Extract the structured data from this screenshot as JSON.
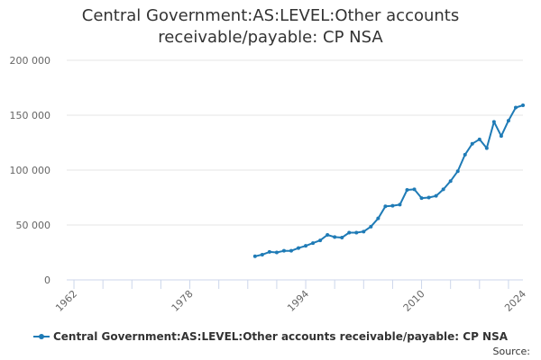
{
  "chart_data": {
    "type": "line",
    "title": "Central Government:AS:LEVEL:Other accounts receivable/payable: CP NSA",
    "xlabel": "",
    "ylabel": "",
    "xlim": [
      1961,
      2024
    ],
    "ylim": [
      0,
      200000
    ],
    "x_ticks": [
      "1962",
      "1978",
      "1994",
      "2010",
      "2024"
    ],
    "y_ticks": [
      "0",
      "50 000",
      "100 000",
      "150 000",
      "200 000"
    ],
    "grid": true,
    "legend": "bottom-center",
    "x": [
      1987,
      1988,
      1989,
      1990,
      1991,
      1992,
      1993,
      1994,
      1995,
      1996,
      1997,
      1998,
      1999,
      2000,
      2001,
      2002,
      2003,
      2004,
      2005,
      2006,
      2007,
      2008,
      2009,
      2010,
      2011,
      2012,
      2013,
      2014,
      2015,
      2016,
      2017,
      2018,
      2019,
      2020,
      2021,
      2022,
      2023,
      2024
    ],
    "series": [
      {
        "name": "Central Government:AS:LEVEL:Other accounts receivable/payable: CP NSA",
        "color": "#1f7bb6",
        "values": [
          21500,
          23000,
          25500,
          25000,
          26500,
          26500,
          29000,
          31000,
          33500,
          36000,
          41000,
          39000,
          38500,
          43000,
          43000,
          44000,
          48500,
          56000,
          67000,
          67500,
          68500,
          82000,
          82500,
          74500,
          75000,
          76500,
          82500,
          90000,
          99000,
          114000,
          124000,
          128000,
          120000,
          144000,
          131000,
          145000,
          157000,
          159000
        ]
      }
    ]
  },
  "legend_label": "Central Government:AS:LEVEL:Other accounts receivable/payable: CP NSA",
  "source_label": "Source:"
}
